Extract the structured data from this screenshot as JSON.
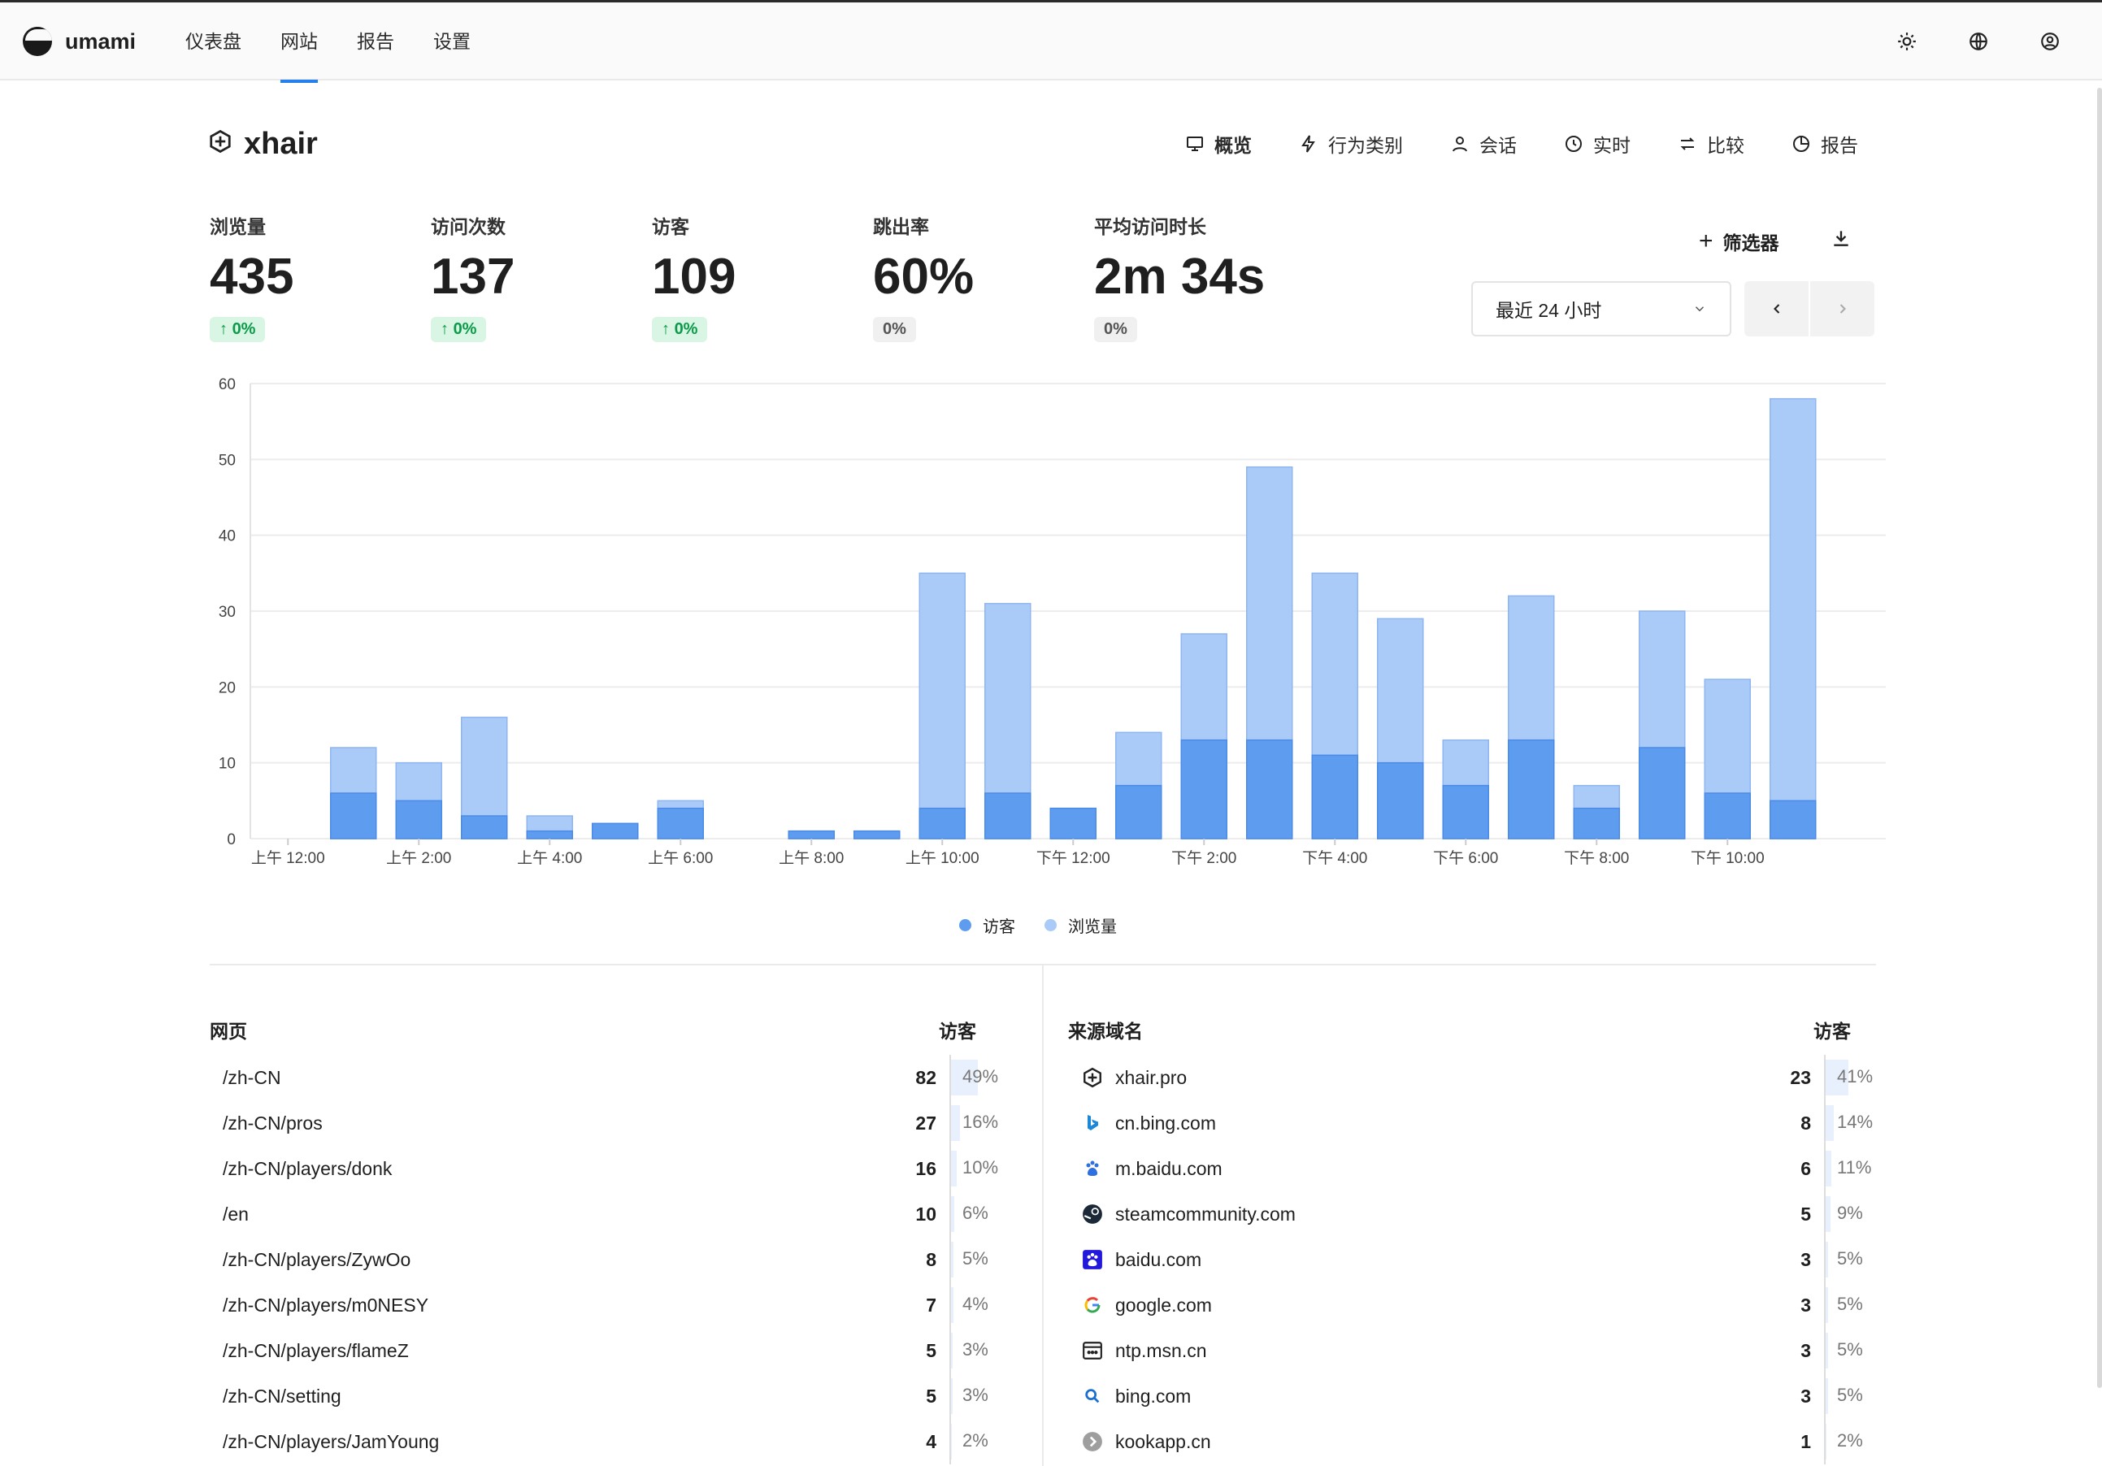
{
  "app": {
    "name": "umami"
  },
  "nav": [
    {
      "label": "仪表盘",
      "active": false
    },
    {
      "label": "网站",
      "active": true
    },
    {
      "label": "报告",
      "active": false
    },
    {
      "label": "设置",
      "active": false
    }
  ],
  "top_icons": [
    "sun-icon",
    "globe-icon",
    "user-icon"
  ],
  "site": {
    "title": "xhair"
  },
  "tabs": [
    {
      "label": "概览",
      "icon": "monitor-icon",
      "active": true
    },
    {
      "label": "行为类别",
      "icon": "bolt-icon",
      "active": false
    },
    {
      "label": "会话",
      "icon": "user-icon",
      "active": false
    },
    {
      "label": "实时",
      "icon": "clock-icon",
      "active": false
    },
    {
      "label": "比较",
      "icon": "compare-icon",
      "active": false
    },
    {
      "label": "报告",
      "icon": "report-icon",
      "active": false
    }
  ],
  "metrics": [
    {
      "label": "浏览量",
      "value": "435",
      "change": "0%",
      "trend": "up"
    },
    {
      "label": "访问次数",
      "value": "137",
      "change": "0%",
      "trend": "up"
    },
    {
      "label": "访客",
      "value": "109",
      "change": "0%",
      "trend": "up"
    },
    {
      "label": "跳出率",
      "value": "60%",
      "change": "0%",
      "trend": "none"
    },
    {
      "label": "平均访问时长",
      "value": "2m 34s",
      "change": "0%",
      "trend": "none"
    }
  ],
  "toolbar": {
    "filter_label": "筛选器",
    "date_range": "最近 24 小时"
  },
  "colors": {
    "accent": "#2680eb",
    "visitors": "#5e9cf0",
    "pageviews": "#aacaf7"
  },
  "chart_data": {
    "type": "bar",
    "stacked": true,
    "categories": [
      "上午 12:00",
      "上午 1:00",
      "上午 2:00",
      "上午 3:00",
      "上午 4:00",
      "上午 5:00",
      "上午 6:00",
      "上午 7:00",
      "上午 8:00",
      "上午 9:00",
      "上午 10:00",
      "上午 11:00",
      "下午 12:00",
      "下午 1:00",
      "下午 2:00",
      "下午 3:00",
      "下午 4:00",
      "下午 5:00",
      "下午 6:00",
      "下午 7:00",
      "下午 8:00",
      "下午 9:00",
      "下午 10:00",
      "下午 11:00"
    ],
    "tick_labels": [
      "上午 12:00",
      "上午 2:00",
      "上午 4:00",
      "上午 6:00",
      "上午 8:00",
      "上午 10:00",
      "下午 12:00",
      "下午 2:00",
      "下午 4:00",
      "下午 6:00",
      "下午 8:00",
      "下午 10:00"
    ],
    "series": [
      {
        "name": "访客",
        "values": [
          0,
          6,
          5,
          3,
          1,
          2,
          4,
          0,
          1,
          1,
          4,
          6,
          4,
          7,
          13,
          13,
          11,
          10,
          7,
          13,
          4,
          12,
          6,
          5
        ]
      },
      {
        "name": "浏览量",
        "values": [
          0,
          12,
          10,
          16,
          3,
          2,
          5,
          0,
          1,
          1,
          35,
          31,
          4,
          14,
          27,
          49,
          35,
          29,
          13,
          32,
          7,
          30,
          21,
          58
        ]
      }
    ],
    "ylim": [
      0,
      60
    ],
    "yticks": [
      0,
      10,
      20,
      30,
      40,
      50,
      60
    ],
    "grid": true,
    "legend": "bottom"
  },
  "pages_table": {
    "title": "网页",
    "column": "访客",
    "rows": [
      {
        "label": "/zh-CN",
        "count": "82",
        "pct": "49%",
        "fraction": 0.49
      },
      {
        "label": "/zh-CN/pros",
        "count": "27",
        "pct": "16%",
        "fraction": 0.16
      },
      {
        "label": "/zh-CN/players/donk",
        "count": "16",
        "pct": "10%",
        "fraction": 0.1
      },
      {
        "label": "/en",
        "count": "10",
        "pct": "6%",
        "fraction": 0.06
      },
      {
        "label": "/zh-CN/players/ZywOo",
        "count": "8",
        "pct": "5%",
        "fraction": 0.05
      },
      {
        "label": "/zh-CN/players/m0NESY",
        "count": "7",
        "pct": "4%",
        "fraction": 0.04
      },
      {
        "label": "/zh-CN/players/flameZ",
        "count": "5",
        "pct": "3%",
        "fraction": 0.03
      },
      {
        "label": "/zh-CN/setting",
        "count": "5",
        "pct": "3%",
        "fraction": 0.03
      },
      {
        "label": "/zh-CN/players/JamYoung",
        "count": "4",
        "pct": "2%",
        "fraction": 0.02
      }
    ]
  },
  "referrers_table": {
    "title": "来源域名",
    "column": "访客",
    "rows": [
      {
        "label": "xhair.pro",
        "count": "23",
        "pct": "41%",
        "fraction": 0.41,
        "icon": "xhair-logo-icon"
      },
      {
        "label": "cn.bing.com",
        "count": "8",
        "pct": "14%",
        "fraction": 0.14,
        "icon": "bing-logo-icon"
      },
      {
        "label": "m.baidu.com",
        "count": "6",
        "pct": "11%",
        "fraction": 0.11,
        "icon": "baidu-logo-icon"
      },
      {
        "label": "steamcommunity.com",
        "count": "5",
        "pct": "9%",
        "fraction": 0.09,
        "icon": "steam-logo-icon"
      },
      {
        "label": "baidu.com",
        "count": "3",
        "pct": "5%",
        "fraction": 0.05,
        "icon": "baidu-square-icon"
      },
      {
        "label": "google.com",
        "count": "3",
        "pct": "5%",
        "fraction": 0.05,
        "icon": "google-logo-icon"
      },
      {
        "label": "ntp.msn.cn",
        "count": "3",
        "pct": "5%",
        "fraction": 0.05,
        "icon": "msn-logo-icon"
      },
      {
        "label": "bing.com",
        "count": "3",
        "pct": "5%",
        "fraction": 0.05,
        "icon": "search-icon"
      },
      {
        "label": "kookapp.cn",
        "count": "1",
        "pct": "2%",
        "fraction": 0.02,
        "icon": "kook-logo-icon"
      }
    ]
  }
}
